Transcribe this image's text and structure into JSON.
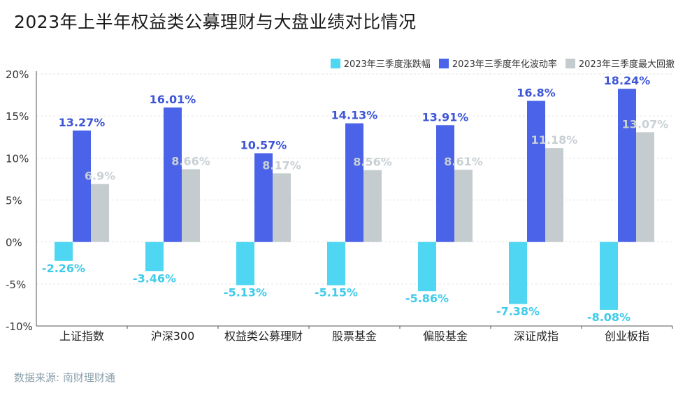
{
  "title": "2023年上半年权益类公募理财与大盘业绩对比情况",
  "source": "数据来源: 南财理财通",
  "legend": [
    {
      "label": "2023年三季度涨跌幅",
      "color": "#4fd6f2"
    },
    {
      "label": "2023年三季度年化波动率",
      "color": "#4a63e8"
    },
    {
      "label": "2023年三季度最大回撤",
      "color": "#c4cccf"
    }
  ],
  "chart_data": {
    "type": "bar",
    "title": "2023年上半年权益类公募理财与大盘业绩对比情况",
    "categories": [
      "上证指数",
      "沪深300",
      "权益类公募理财",
      "股票基金",
      "偏股基金",
      "深证成指",
      "创业板指"
    ],
    "series": [
      {
        "name": "2023年三季度涨跌幅",
        "color": "#4fd6f2",
        "label_color": "#3fcbea",
        "values": [
          -2.26,
          -3.46,
          -5.13,
          -5.15,
          -5.86,
          -7.38,
          -8.08
        ],
        "labels": [
          "-2.26%",
          "-3.46%",
          "-5.13%",
          "-5.15%",
          "-5.86%",
          "-7.38%",
          "-8.08%"
        ]
      },
      {
        "name": "2023年三季度年化波动率",
        "color": "#4a63e8",
        "label_color": "#3d56d8",
        "values": [
          13.27,
          16.01,
          10.57,
          14.13,
          13.91,
          16.8,
          18.24
        ],
        "labels": [
          "13.27%",
          "16.01%",
          "10.57%",
          "14.13%",
          "13.91%",
          "16.8%",
          "18.24%"
        ]
      },
      {
        "name": "2023年三季度最大回撤",
        "color": "#c4cccf",
        "label_color": "#c8d0d3",
        "values": [
          6.9,
          8.66,
          8.17,
          8.56,
          8.61,
          11.18,
          13.07
        ],
        "labels": [
          "6.9%",
          "8.66%",
          "8.17%",
          "8.56%",
          "8.61%",
          "11.18%",
          "13.07%"
        ]
      }
    ],
    "ylim": [
      -10,
      20
    ],
    "yticks": [
      20,
      15,
      10,
      5,
      0,
      -5,
      -10
    ],
    "ytick_labels": [
      "20%",
      "15%",
      "10%",
      "5%",
      "0%",
      "-5%",
      "-10%"
    ],
    "grid": true,
    "legend_position": "top-right"
  }
}
